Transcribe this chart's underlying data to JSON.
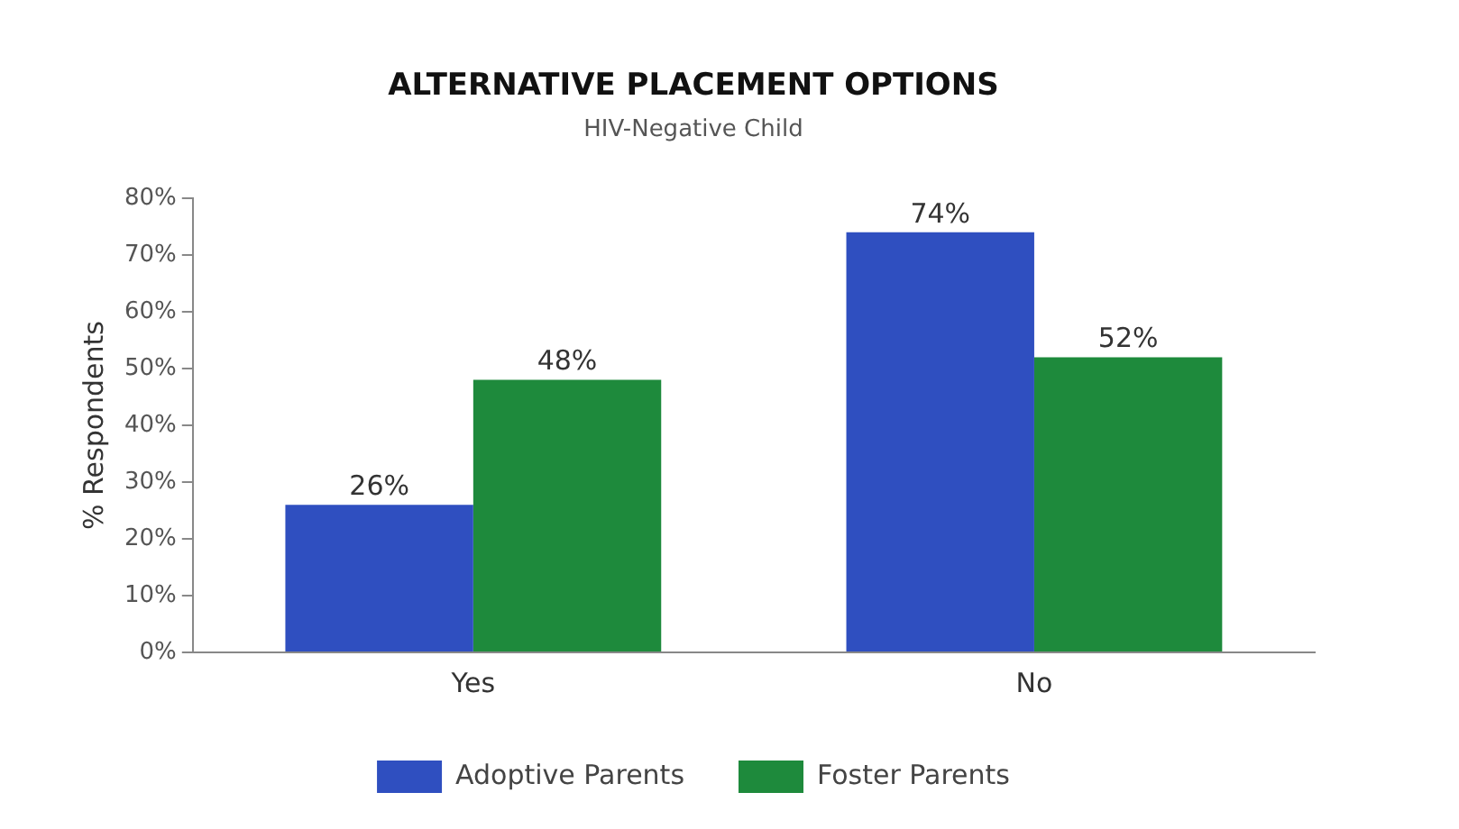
{
  "chart_data": {
    "type": "bar",
    "title": "ALTERNATIVE PLACEMENT OPTIONS",
    "subtitle": "HIV-Negative Child",
    "ylabel": "% Respondents",
    "categories": [
      "Yes",
      "No"
    ],
    "series": [
      {
        "name": "Adoptive Parents",
        "color": "#2f4fc0",
        "values": [
          26,
          74
        ],
        "value_labels": [
          "26%",
          "74%"
        ]
      },
      {
        "name": "Foster Parents",
        "color": "#1e8a3c",
        "values": [
          48,
          52
        ],
        "value_labels": [
          "48%",
          "52%"
        ]
      }
    ],
    "ylim": [
      0,
      80
    ],
    "yticks": [
      {
        "value": 0,
        "label": "0%"
      },
      {
        "value": 10,
        "label": "10%"
      },
      {
        "value": 20,
        "label": "20%"
      },
      {
        "value": 30,
        "label": "30%"
      },
      {
        "value": 40,
        "label": "40%"
      },
      {
        "value": 50,
        "label": "50%"
      },
      {
        "value": 60,
        "label": "60%"
      },
      {
        "value": 70,
        "label": "70%"
      },
      {
        "value": 80,
        "label": "80%"
      }
    ],
    "grid": false,
    "legend": "bottom"
  }
}
